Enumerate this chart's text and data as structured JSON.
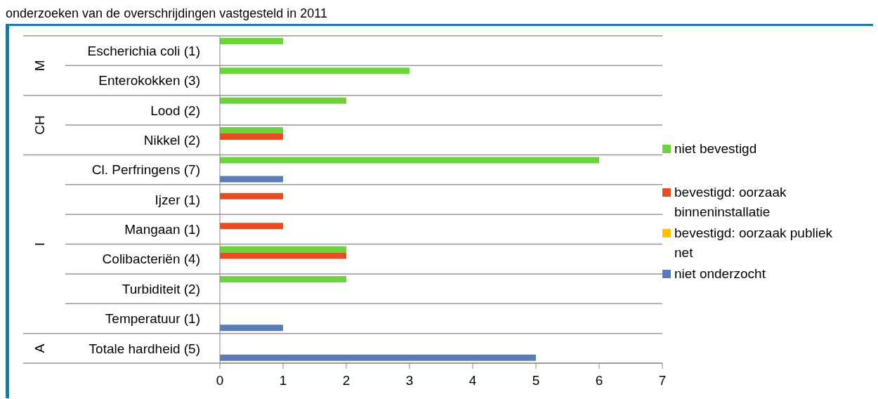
{
  "chart_data": {
    "type": "bar",
    "orientation": "horizontal",
    "title": "onderzoeken van de overschrijdingen vastgesteld in 2011",
    "categories": [
      "Escherichia coli (1)",
      "Enterokokken (3)",
      "Lood (2)",
      "Nikkel (2)",
      "Cl. Perfringens (7)",
      "Ijzer (1)",
      "Mangaan (1)",
      "Colibacteriën (4)",
      "Turbiditeit (2)",
      "Temperatuur (1)",
      "Totale hardheid (5)"
    ],
    "series": [
      {
        "name": "niet bevestigd",
        "color": "#6dd33c",
        "values": [
          1,
          3,
          2,
          1,
          6,
          null,
          null,
          2,
          2,
          null,
          null
        ]
      },
      {
        "name": "bevestigd: oorzaak binneninstallatie",
        "color": "#e84c22",
        "values": [
          null,
          null,
          null,
          1,
          null,
          1,
          1,
          2,
          null,
          null,
          null
        ]
      },
      {
        "name": "bevestigd: oorzaak publiek net",
        "color": "#ffc000",
        "values": [
          null,
          null,
          null,
          null,
          null,
          null,
          null,
          null,
          null,
          null,
          null
        ]
      },
      {
        "name": "niet onderzocht",
        "color": "#5b7db5",
        "values": [
          null,
          null,
          null,
          null,
          1,
          null,
          null,
          null,
          null,
          1,
          5
        ]
      }
    ],
    "annotations": [
      "M",
      "CH",
      "I",
      "A"
    ],
    "xlim": [
      0,
      7
    ],
    "xticks": [
      0,
      1,
      2,
      3,
      4,
      5,
      6,
      7
    ],
    "grid": "y",
    "legend": "right"
  }
}
